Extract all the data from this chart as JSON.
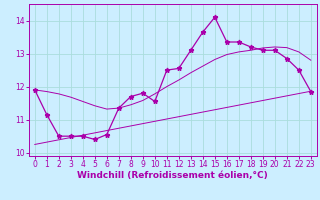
{
  "xlabel": "Windchill (Refroidissement éolien,°C)",
  "bg_color": "#cceeff",
  "line_color": "#aa00aa",
  "grid_color": "#aadddd",
  "x_data": [
    0,
    1,
    2,
    3,
    4,
    5,
    6,
    7,
    8,
    9,
    10,
    11,
    12,
    13,
    14,
    15,
    16,
    17,
    18,
    19,
    20,
    21,
    22,
    23
  ],
  "y_main": [
    11.9,
    11.15,
    10.5,
    10.5,
    10.5,
    10.4,
    10.55,
    11.35,
    11.7,
    11.8,
    11.55,
    12.5,
    12.55,
    13.1,
    13.65,
    14.1,
    13.35,
    13.35,
    13.2,
    13.1,
    13.1,
    12.85,
    12.5,
    11.85
  ],
  "y_lower": [
    10.25,
    10.32,
    10.39,
    10.46,
    10.53,
    10.6,
    10.67,
    10.74,
    10.81,
    10.88,
    10.95,
    11.02,
    11.09,
    11.16,
    11.23,
    11.3,
    11.37,
    11.44,
    11.51,
    11.58,
    11.65,
    11.72,
    11.79,
    11.86
  ],
  "y_upper": [
    11.9,
    11.85,
    11.78,
    11.68,
    11.55,
    11.42,
    11.32,
    11.35,
    11.45,
    11.58,
    11.78,
    12.0,
    12.2,
    12.42,
    12.62,
    12.82,
    12.97,
    13.05,
    13.1,
    13.17,
    13.2,
    13.18,
    13.05,
    12.8
  ],
  "xlim": [
    -0.5,
    23.5
  ],
  "ylim": [
    9.9,
    14.5
  ],
  "yticks": [
    10,
    11,
    12,
    13,
    14
  ],
  "xticks": [
    0,
    1,
    2,
    3,
    4,
    5,
    6,
    7,
    8,
    9,
    10,
    11,
    12,
    13,
    14,
    15,
    16,
    17,
    18,
    19,
    20,
    21,
    22,
    23
  ],
  "tick_color": "#aa00aa",
  "tick_fontsize": 5.5,
  "xlabel_fontsize": 6.5,
  "label_color": "#aa00aa",
  "marker_size": 3.5
}
